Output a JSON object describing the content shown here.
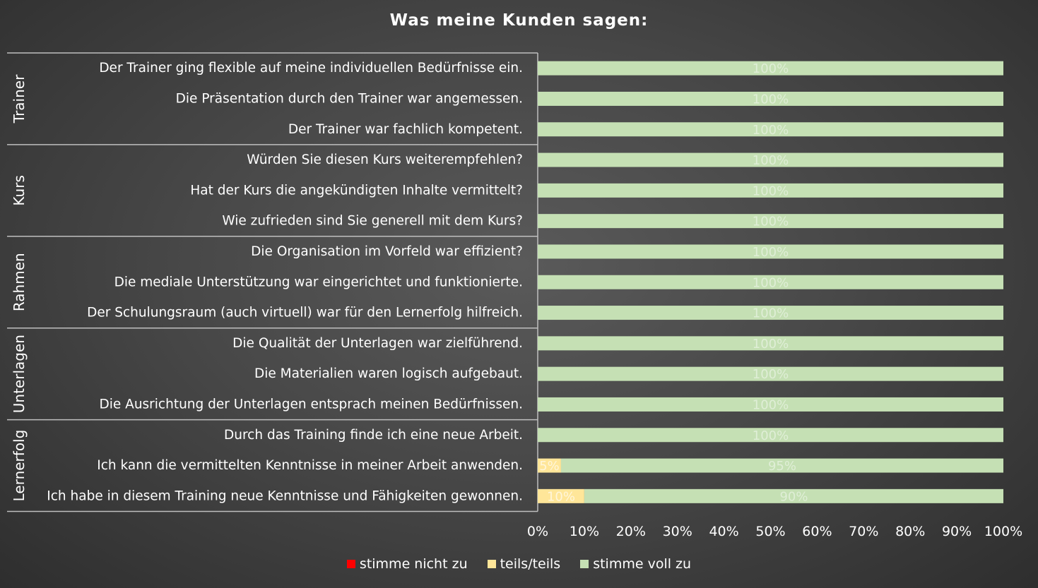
{
  "chart_data": {
    "type": "bar",
    "orientation": "horizontal",
    "stacked": "percent",
    "title": "Was meine Kunden sagen:",
    "xlim": [
      0,
      100
    ],
    "x_ticks": [
      "0%",
      "10%",
      "20%",
      "30%",
      "40%",
      "50%",
      "60%",
      "70%",
      "80%",
      "90%",
      "100%"
    ],
    "groups": [
      {
        "label": "Trainer",
        "categories": [
          "Der Trainer ging flexible auf meine individuellen Bedürfnisse ein.",
          "Die Präsentation durch den Trainer war angemessen.",
          "Der Trainer war fachlich kompetent."
        ]
      },
      {
        "label": "Kurs",
        "categories": [
          "Würden Sie diesen Kurs weiterempfehlen?",
          "Hat der Kurs die angekündigten Inhalte vermittelt?",
          "Wie zufrieden sind Sie generell mit dem Kurs?"
        ]
      },
      {
        "label": "Rahmen",
        "categories": [
          "Die Organisation im Vorfeld war effizient?",
          "Die mediale Unterstützung war eingerichtet und funktionierte.",
          "Der Schulungsraum (auch virtuell) war für den Lernerfolg hilfreich."
        ]
      },
      {
        "label": "Unterlagen",
        "categories": [
          "Die Qualität der Unterlagen war zielführend.",
          "Die Materialien waren logisch aufgebaut.",
          "Die Ausrichtung der Unterlagen entsprach meinen Bedürfnissen."
        ]
      },
      {
        "label": "Lernerfolg",
        "categories": [
          "Durch das Training finde ich eine neue Arbeit.",
          "Ich kann die vermittelten Kenntnisse in meiner Arbeit anwenden.",
          "Ich habe in diesem Training neue Kenntnisse und Fähigkeiten gewonnen."
        ]
      }
    ],
    "series": [
      {
        "name": "stimme nicht zu",
        "color": "#ff0000",
        "values": [
          0,
          0,
          0,
          0,
          0,
          0,
          0,
          0,
          0,
          0,
          0,
          0,
          0,
          0,
          0
        ],
        "labels": [
          "",
          "",
          "",
          "",
          "",
          "",
          "",
          "",
          "",
          "",
          "",
          "",
          "",
          "",
          ""
        ]
      },
      {
        "name": "teils/teils",
        "color": "#ffe699",
        "values": [
          0,
          0,
          0,
          0,
          0,
          0,
          0,
          0,
          0,
          0,
          0,
          0,
          0,
          5,
          10
        ],
        "labels": [
          "",
          "",
          "",
          "",
          "",
          "",
          "",
          "",
          "",
          "",
          "",
          "",
          "",
          "5%",
          "10%"
        ]
      },
      {
        "name": "stimme voll zu",
        "color": "#c5e0b4",
        "values": [
          100,
          100,
          100,
          100,
          100,
          100,
          100,
          100,
          100,
          100,
          100,
          100,
          100,
          95,
          90
        ],
        "labels": [
          "100%",
          "100%",
          "100%",
          "100%",
          "100%",
          "100%",
          "100%",
          "100%",
          "100%",
          "100%",
          "100%",
          "100%",
          "100%",
          "95%",
          "90%"
        ]
      }
    ],
    "legend_position": "bottom"
  }
}
